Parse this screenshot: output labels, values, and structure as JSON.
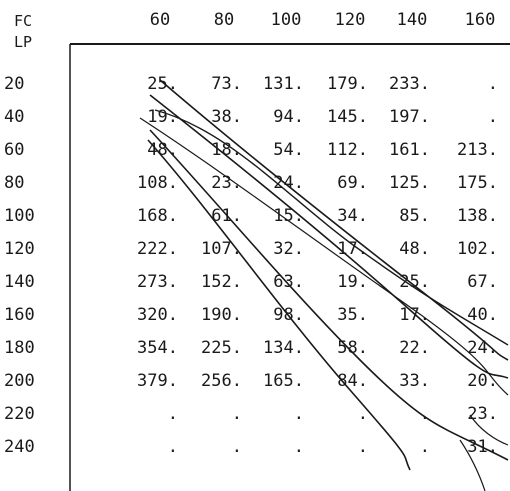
{
  "table": {
    "corner_top": "FC",
    "corner_bottom": "LP",
    "columns": [
      "60",
      "80",
      "100",
      "120",
      "140",
      "160"
    ],
    "rows": [
      {
        "label": "20",
        "cells": [
          "25.",
          "73.",
          "131.",
          "179.",
          "233.",
          "."
        ]
      },
      {
        "label": "40",
        "cells": [
          "19.",
          "38.",
          "94.",
          "145.",
          "197.",
          "."
        ]
      },
      {
        "label": "60",
        "cells": [
          "48.",
          "18.",
          "54.",
          "112.",
          "161.",
          "213."
        ]
      },
      {
        "label": "80",
        "cells": [
          "108.",
          "23.",
          "24.",
          "69.",
          "125.",
          "175."
        ]
      },
      {
        "label": "100",
        "cells": [
          "168.",
          "61.",
          "15.",
          "34.",
          "85.",
          "138."
        ]
      },
      {
        "label": "120",
        "cells": [
          "222.",
          "107.",
          "32.",
          "17.",
          "48.",
          "102."
        ]
      },
      {
        "label": "140",
        "cells": [
          "273.",
          "152.",
          "63.",
          "19.",
          "25.",
          "67."
        ]
      },
      {
        "label": "160",
        "cells": [
          "320.",
          "190.",
          "98.",
          "35.",
          "17.",
          "40."
        ]
      },
      {
        "label": "180",
        "cells": [
          "354.",
          "225.",
          "134.",
          "58.",
          "22.",
          "24."
        ]
      },
      {
        "label": "200",
        "cells": [
          "379.",
          "256.",
          "165.",
          "84.",
          "33.",
          "20."
        ]
      },
      {
        "label": "220",
        "cells": [
          ".",
          ".",
          ".",
          ".",
          ".",
          "23."
        ]
      },
      {
        "label": "240",
        "cells": [
          ".",
          ".",
          ".",
          ".",
          ".",
          "31."
        ]
      }
    ]
  }
}
